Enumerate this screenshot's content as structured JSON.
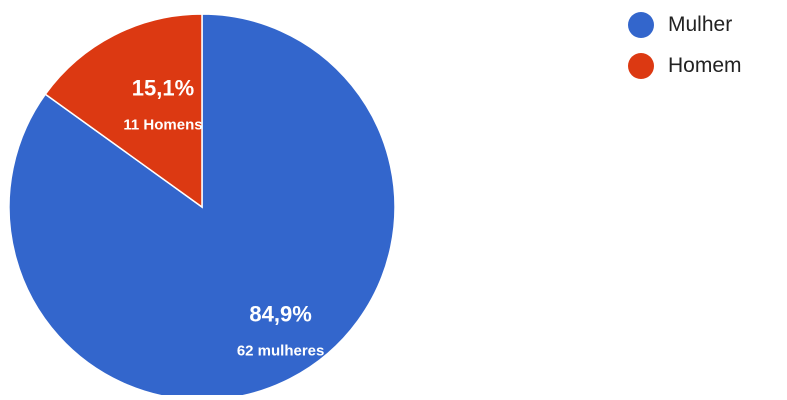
{
  "chart_data": {
    "type": "pie",
    "slices": [
      {
        "name": "Mulher",
        "value": 62,
        "percent_label": "84,9%",
        "count_label": "62 mulheres",
        "color": "#3366cc"
      },
      {
        "name": "Homem",
        "value": 11,
        "percent_label": "15,1%",
        "count_label": "11 Homens",
        "color": "#dc3912"
      }
    ],
    "title": "",
    "legend_position": "top-right",
    "start_angle_deg": 90,
    "direction": "clockwise"
  },
  "legend": {
    "items": [
      {
        "label": "Mulher",
        "color": "#3366cc"
      },
      {
        "label": "Homem",
        "color": "#dc3912"
      }
    ]
  }
}
